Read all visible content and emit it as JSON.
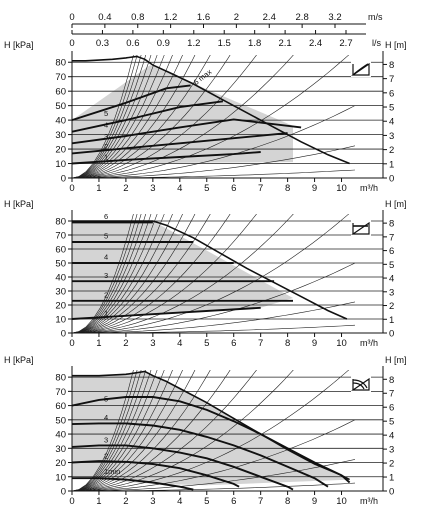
{
  "flow_scales": {
    "ms_ticks": [
      "0",
      "0.4",
      "0.8",
      "1.2",
      "1.6",
      "2",
      "2.4",
      "2.8",
      "3.2"
    ],
    "ms_unit": "m/s",
    "ls_ticks": [
      "0",
      "0.3",
      "0.6",
      "0.9",
      "1.2",
      "1.5",
      "1.8",
      "2.1",
      "2.4",
      "2.7"
    ],
    "ls_unit": "l/s"
  },
  "colors": {
    "shade": "#d4d4d4",
    "line": "#111111",
    "grid": "#222222"
  },
  "chart_data": [
    {
      "type": "line",
      "control_mode": "proportional-pressure",
      "icon": "proportional-pressure-icon",
      "title": "",
      "xlabel": "m³/h",
      "ylabel_left": "H [kPa]",
      "ylabel_right": "H [m]",
      "xlim": [
        0,
        10.5
      ],
      "ylim": [
        0,
        85
      ],
      "x_ticks": [
        "0",
        "1",
        "2",
        "3",
        "4",
        "5",
        "6",
        "7",
        "8",
        "9",
        "10"
      ],
      "y_ticks_left": [
        "0",
        "10",
        "20",
        "30",
        "40",
        "50",
        "60",
        "70",
        "80"
      ],
      "y_ticks_right": [
        "0",
        "1",
        "2",
        "3",
        "4",
        "5",
        "6",
        "7",
        "8"
      ],
      "grid": true,
      "shaded_region": {
        "x": [
          0,
          0,
          2.9,
          8.2,
          8.2,
          0
        ],
        "y": [
          10,
          40,
          78,
          36,
          11,
          10
        ]
      },
      "max_curve": {
        "x": [
          0,
          0.5,
          1.0,
          1.5,
          2.0,
          2.4,
          2.7,
          3.0,
          3.6,
          4.5,
          5.5,
          6.5,
          7.5,
          8.5,
          9.5,
          10.3
        ],
        "y": [
          81,
          81,
          81.5,
          82,
          83,
          84,
          82,
          78,
          73,
          65,
          55,
          45,
          35,
          25,
          16,
          10
        ]
      },
      "max_curve_label": "6 max",
      "series": [
        {
          "name": "1",
          "x": [
            0,
            2.0,
            4.0,
            6.0,
            7.0
          ],
          "y": [
            10,
            12.5,
            14.5,
            16.5,
            18
          ]
        },
        {
          "name": "2",
          "x": [
            0,
            2.0,
            4.0,
            6.0,
            8.0
          ],
          "y": [
            17,
            20.5,
            24,
            27.5,
            31
          ]
        },
        {
          "name": "3",
          "x": [
            0,
            2.0,
            4.0,
            6.0,
            8.5
          ],
          "y": [
            24,
            29,
            35,
            40.5,
            35
          ]
        },
        {
          "name": "4",
          "x": [
            0,
            2.0,
            4.0,
            5.6
          ],
          "y": [
            32,
            40,
            49,
            53
          ]
        },
        {
          "name": "5",
          "x": [
            0,
            2.0,
            3.5,
            4.4
          ],
          "y": [
            40,
            52,
            62,
            64
          ]
        }
      ]
    },
    {
      "type": "line",
      "control_mode": "constant-pressure",
      "icon": "constant-pressure-icon",
      "title": "",
      "xlabel": "m³/h",
      "ylabel_left": "H [kPa]",
      "ylabel_right": "H [m]",
      "xlim": [
        0,
        10.5
      ],
      "ylim": [
        0,
        85
      ],
      "x_ticks": [
        "0",
        "1",
        "2",
        "3",
        "4",
        "5",
        "6",
        "7",
        "8",
        "9",
        "10"
      ],
      "y_ticks_left": [
        "0",
        "10",
        "20",
        "30",
        "40",
        "50",
        "60",
        "70",
        "80"
      ],
      "y_ticks_right": [
        "0",
        "1",
        "2",
        "3",
        "4",
        "5",
        "6",
        "7",
        "8"
      ],
      "grid": true,
      "shaded_region": {
        "x": [
          0,
          0,
          3.0,
          8.2,
          7.0,
          0
        ],
        "y": [
          10,
          80,
          80,
          25,
          18,
          10
        ]
      },
      "max_curve": {
        "x": [
          0,
          3.0,
          3.5,
          4.5,
          5.5,
          6.5,
          7.5,
          8.5,
          9.5,
          10.2
        ],
        "y": [
          80,
          80,
          77,
          68,
          57,
          46,
          36,
          26,
          16,
          10
        ]
      },
      "max_curve_label": "",
      "series": [
        {
          "name": "1",
          "x": [
            0,
            7.0
          ],
          "y": [
            10,
            18
          ]
        },
        {
          "name": "2",
          "x": [
            0,
            8.2
          ],
          "y": [
            23,
            23
          ]
        },
        {
          "name": "3",
          "x": [
            0,
            7.5
          ],
          "y": [
            37,
            37
          ]
        },
        {
          "name": "4",
          "x": [
            0,
            6.0
          ],
          "y": [
            50,
            50
          ]
        },
        {
          "name": "5",
          "x": [
            0,
            4.5
          ],
          "y": [
            65,
            65
          ]
        },
        {
          "name": "6",
          "x": [
            0,
            3.0
          ],
          "y": [
            79,
            79
          ]
        }
      ]
    },
    {
      "type": "line",
      "control_mode": "constant-curve",
      "icon": "constant-curve-icon",
      "title": "",
      "xlabel": "m³/h",
      "ylabel_left": "H [kPa]",
      "ylabel_right": "H [m]",
      "xlim": [
        0,
        10.5
      ],
      "ylim": [
        0,
        85
      ],
      "x_ticks": [
        "0",
        "1",
        "2",
        "3",
        "4",
        "5",
        "6",
        "7",
        "8",
        "9",
        "10"
      ],
      "y_ticks_left": [
        "0",
        "10",
        "20",
        "30",
        "40",
        "50",
        "60",
        "70",
        "80"
      ],
      "y_ticks_right": [
        "0",
        "1",
        "2",
        "3",
        "4",
        "5",
        "6",
        "7",
        "8"
      ],
      "grid": true,
      "shaded_region": {
        "x": [
          0,
          0,
          1.0,
          2.0,
          2.7,
          3.0,
          4.0,
          5.0,
          6.0,
          7.0,
          8.0,
          9.0,
          10.0,
          10.3,
          5.0,
          3.0,
          1.0,
          0
        ],
        "y": [
          10,
          81,
          81,
          82,
          84,
          81,
          72,
          62,
          51,
          40,
          29,
          19,
          11,
          8,
          4,
          5,
          8,
          10
        ]
      },
      "max_curve": {
        "x": [
          0,
          1.0,
          2.0,
          2.7,
          3.0,
          3.5,
          4.0,
          5.0,
          6.0,
          7.0,
          8.0,
          9.0,
          10.0,
          10.3
        ],
        "y": [
          81,
          81,
          82,
          84,
          81,
          77,
          72,
          62,
          51,
          40,
          29,
          19,
          11,
          8
        ]
      },
      "max_curve_label": "",
      "series": [
        {
          "name": "1min",
          "x": [
            0,
            1.0,
            2.0,
            3.0,
            4.0,
            4.5
          ],
          "y": [
            9,
            9,
            8,
            6,
            3,
            1
          ]
        },
        {
          "name": "2",
          "x": [
            0,
            1.0,
            2.0,
            3.0,
            4.0,
            5.0,
            6.0,
            6.2
          ],
          "y": [
            20,
            21,
            20.5,
            19,
            16,
            11,
            5,
            3
          ]
        },
        {
          "name": "3",
          "x": [
            0,
            1.0,
            2.0,
            3.0,
            4.0,
            5.0,
            6.0,
            7.0,
            8.0,
            8.2
          ],
          "y": [
            31,
            32,
            32,
            30,
            27,
            23,
            17,
            10,
            3,
            1
          ]
        },
        {
          "name": "4",
          "x": [
            0,
            1.0,
            2.0,
            3.0,
            4.0,
            5.0,
            6.0,
            7.0,
            8.0,
            9.0,
            9.5
          ],
          "y": [
            47,
            47.5,
            47.5,
            46,
            43,
            38,
            32,
            25,
            17,
            9,
            3
          ]
        },
        {
          "name": "5",
          "x": [
            0,
            1.0,
            2.0,
            3.0,
            4.0,
            5.0,
            6.0,
            7.0,
            8.0,
            9.0,
            10.0,
            10.3
          ],
          "y": [
            60,
            64,
            66,
            66,
            63,
            57,
            49,
            40,
            30,
            20,
            11,
            6
          ]
        }
      ]
    }
  ]
}
